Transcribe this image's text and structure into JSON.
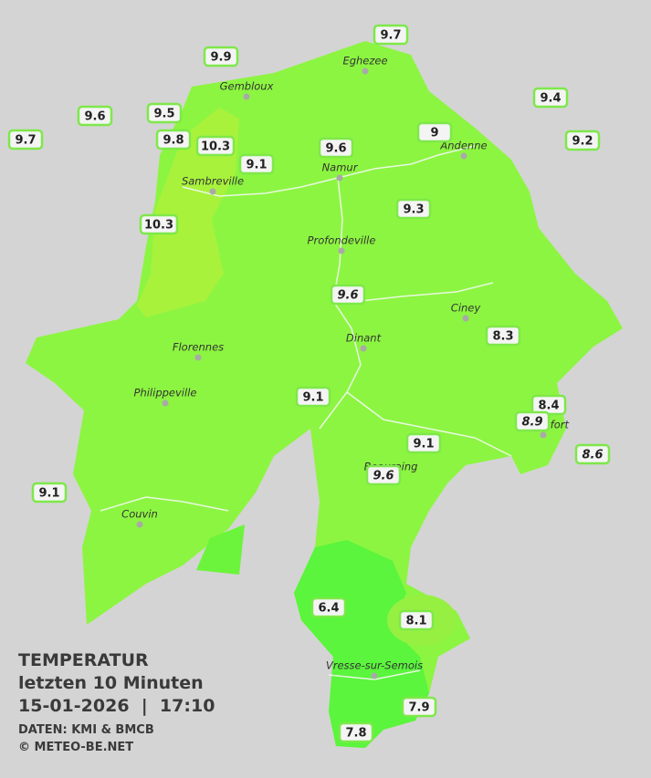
{
  "title": "TEMPERATUR",
  "subtitle": "letzten 10 Minuten",
  "datetime": "15-01-2026  |  17:10",
  "source": "DATEN: KMI & BMCB",
  "copyright": "© METEO-BE.NET",
  "cities": [
    "Eghezee",
    "Gembloux",
    "Andenne",
    "Namur",
    "Sambreville",
    "Profondeville",
    "Ciney",
    "Dinant",
    "Florennes",
    "Philippeville",
    "Beauraing",
    "Rochefort",
    "Couvin",
    "Vresse-sur-Semois"
  ],
  "stations": [
    9.7,
    9.9,
    9.4,
    9.6,
    9.5,
    9.8,
    10.3,
    9.7,
    9.0,
    9.6,
    9.2,
    9.1,
    10.3,
    9.3,
    9.6,
    8.3,
    9.1,
    8.4,
    8.9,
    9.1,
    9.6,
    8.6,
    9.1,
    6.4,
    8.1,
    7.9,
    7.8
  ]
}
